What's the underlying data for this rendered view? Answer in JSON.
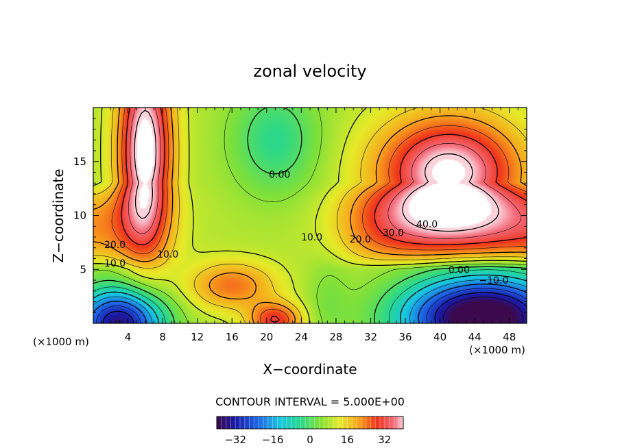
{
  "chart_data": {
    "type": "heatmap",
    "title": "zonal velocity",
    "xlabel": "X−coordinate",
    "ylabel": "Z−coordinate",
    "x_unit_left": "(×1000 m)",
    "x_unit_right": "(×1000 m)",
    "xlim": [
      0,
      50
    ],
    "ylim": [
      0,
      20
    ],
    "xticks": [
      4,
      8,
      12,
      16,
      20,
      24,
      28,
      32,
      36,
      40,
      44,
      48
    ],
    "yticks": [
      5,
      10,
      15
    ],
    "contour_interval_label": "CONTOUR INTERVAL = 5.000E+00",
    "colorbar": {
      "min": -40,
      "max": 40,
      "ticks": [
        "−32",
        "−16",
        "0",
        "16",
        "32"
      ]
    },
    "contour_labels": [
      {
        "text": "40.0",
        "x": 38.5,
        "z": 9.2
      },
      {
        "text": "30.0",
        "x": 34.6,
        "z": 8.4
      },
      {
        "text": "20.0",
        "x": 30.8,
        "z": 7.8
      },
      {
        "text": "20.0",
        "x": 2.5,
        "z": 7.3
      },
      {
        "text": "10.0",
        "x": 2.5,
        "z": 5.6
      },
      {
        "text": "10.0",
        "x": 8.6,
        "z": 6.4
      },
      {
        "text": "10.0",
        "x": 25.2,
        "z": 8.0
      },
      {
        "text": "0.00",
        "x": 21.5,
        "z": 13.8
      },
      {
        "text": "0.00",
        "x": 42.2,
        "z": 5.0
      },
      {
        "text": "−10.0",
        "x": 46.2,
        "z": 4.0
      }
    ],
    "features": [
      {
        "kind": "max",
        "x": 6,
        "z": 16,
        "value": 40
      },
      {
        "kind": "max",
        "x": 40,
        "z": 14,
        "value": 40
      },
      {
        "kind": "min",
        "x": 45,
        "z": 1,
        "value": -40
      },
      {
        "kind": "min",
        "x": 4,
        "z": 0.5,
        "value": -35
      },
      {
        "kind": "max",
        "x": 16,
        "z": 3.5,
        "value": 22
      },
      {
        "kind": "max",
        "x": 21,
        "z": 0.5,
        "value": 28
      },
      {
        "kind": "min",
        "x": 21,
        "z": 17,
        "value": -5
      }
    ]
  }
}
